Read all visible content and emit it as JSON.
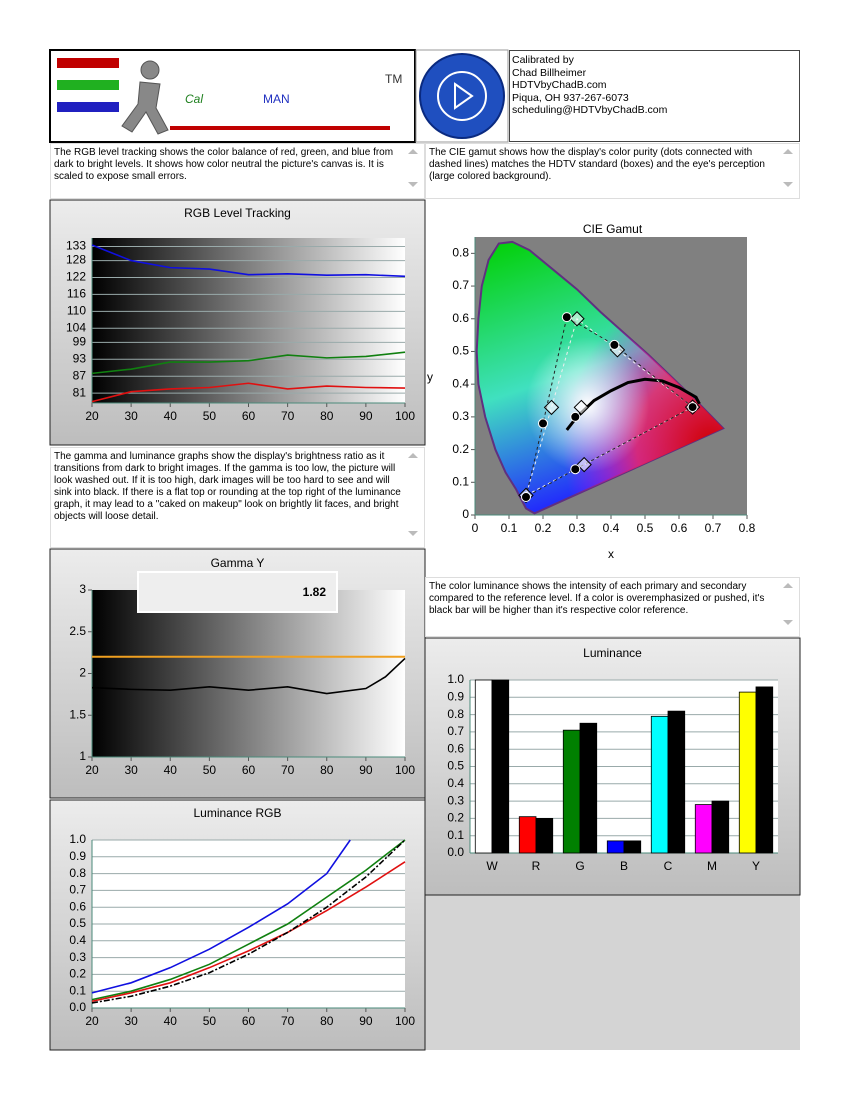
{
  "logo": {
    "cal": "Cal",
    "man": "MAN",
    "tm": "TM"
  },
  "calibrated_by": [
    "Calibrated by",
    "Chad Billheimer",
    "HDTVbyChadB.com",
    "Piqua, OH 937-267-6073",
    "scheduling@HDTVbyChadB.com"
  ],
  "descriptions": {
    "rgb_tracking": "The RGB level tracking shows the color balance of red, green, and blue from dark to bright levels. It shows how color neutral the picture's canvas is.  It is scaled to expose small errors.",
    "cie_gamut": "The CIE gamut shows how the display's color purity (dots connected with dashed lines) matches the HDTV standard (boxes) and the eye's perception (large colored background).",
    "gamma": "The gamma and luminance graphs show the display's brightness ratio as it transitions from dark to bright images. If the gamma is too low, the picture will look washed out. If it is too high, dark images will be too hard to see and will sink into black. If there is a flat top or rounding at the top right of the luminance graph, it may lead to a \"caked on makeup\" look on brightly lit faces, and bright objects will loose detail.",
    "color_luminance": "The color luminance shows the intensity of each primary and secondary compared to the reference level. If a color is overemphasized or pushed, it's black bar will be higher than it's respective color reference."
  },
  "chart_data": [
    {
      "type": "line",
      "title": "RGB Level Tracking",
      "x": [
        20,
        30,
        40,
        50,
        60,
        70,
        80,
        90,
        100
      ],
      "series": [
        {
          "color": "#1010e0",
          "values": [
            133.5,
            128,
            125.5,
            125,
            123,
            123.3,
            122.8,
            123,
            122.4
          ]
        },
        {
          "color": "#108010",
          "values": [
            88,
            89.5,
            92,
            92,
            92.5,
            94.5,
            93.5,
            94,
            95.5
          ]
        },
        {
          "color": "#e01010",
          "values": [
            78,
            81.5,
            82.5,
            83,
            84.5,
            82.5,
            83.5,
            83,
            82.8
          ]
        }
      ],
      "xlim": [
        20,
        100
      ],
      "xticks": [
        20,
        30,
        40,
        50,
        60,
        70,
        80,
        90,
        100
      ],
      "ylim": [
        77.5,
        136
      ],
      "yticks": [
        133,
        128,
        122,
        116,
        110,
        104,
        99,
        93,
        87,
        81
      ],
      "grid": true
    },
    {
      "type": "scatter",
      "title": "CIE Gamut",
      "x_label": "x",
      "y_label": "y",
      "series": [
        {
          "marker": "diamond",
          "color": "#ffffff",
          "x": [
            0.64,
            0.3,
            0.15,
            0.225,
            0.321,
            0.419,
            0.3127
          ],
          "values": [
            0.33,
            0.6,
            0.06,
            0.329,
            0.154,
            0.505,
            0.329
          ]
        },
        {
          "marker": "dot",
          "color": "#000000",
          "x": [
            0.64,
            0.27,
            0.15,
            0.2,
            0.295,
            0.41,
            0.295
          ],
          "values": [
            0.33,
            0.605,
            0.055,
            0.28,
            0.14,
            0.52,
            0.3
          ]
        }
      ],
      "xlim": [
        0,
        0.8
      ],
      "xticks": [
        {
          "value": 0,
          "label": "0"
        },
        0.1,
        0.2,
        0.3,
        0.4,
        0.5,
        0.6,
        0.7,
        0.8
      ],
      "ylim": [
        0,
        0.85
      ],
      "yticks": [
        {
          "value": 0,
          "label": "0"
        },
        0.1,
        0.2,
        0.3,
        0.4,
        0.5,
        0.6,
        0.7,
        0.8
      ]
    },
    {
      "type": "line",
      "title": "Gamma Y",
      "current_value": 1.82,
      "target": 2.2,
      "target_color": "#f0a020",
      "x": [
        20,
        30,
        40,
        50,
        60,
        70,
        80,
        90,
        95,
        100
      ],
      "series": [
        {
          "color": "#000000",
          "values": [
            1.83,
            1.81,
            1.8,
            1.84,
            1.8,
            1.84,
            1.76,
            1.82,
            1.96,
            2.18
          ]
        }
      ],
      "xlim": [
        20,
        100
      ],
      "xticks": [
        20,
        30,
        40,
        50,
        60,
        70,
        80,
        90,
        100
      ],
      "ylim": [
        1,
        3
      ],
      "yticks": [
        1,
        1.5,
        2,
        2.5,
        3
      ],
      "grid": false
    },
    {
      "type": "line",
      "title": "Luminance RGB",
      "x": [
        20,
        30,
        40,
        50,
        60,
        70,
        80,
        90,
        100
      ],
      "series": [
        {
          "color": "#1010e0",
          "x": [
            20,
            30,
            40,
            50,
            60,
            70,
            80,
            86
          ],
          "values": [
            0.09,
            0.15,
            0.24,
            0.35,
            0.48,
            0.62,
            0.8,
            1.0
          ]
        },
        {
          "color": "#108010",
          "values": [
            0.05,
            0.1,
            0.17,
            0.26,
            0.38,
            0.5,
            0.66,
            0.82,
            1.0
          ]
        },
        {
          "color": "#e01010",
          "values": [
            0.04,
            0.09,
            0.15,
            0.24,
            0.34,
            0.45,
            0.58,
            0.72,
            0.87
          ]
        },
        {
          "color": "#000000",
          "dash": "6 2 2 2",
          "values": [
            0.03,
            0.07,
            0.13,
            0.21,
            0.32,
            0.45,
            0.6,
            0.78,
            1.0
          ]
        }
      ],
      "xlim": [
        20,
        100
      ],
      "xticks": [
        20,
        30,
        40,
        50,
        60,
        70,
        80,
        90,
        100
      ],
      "ylim": [
        0,
        1
      ],
      "yticks": [
        {
          "value": 0,
          "label": "0.0"
        },
        0.1,
        0.2,
        0.3,
        0.4,
        0.5,
        0.6,
        0.7,
        0.8,
        0.9,
        {
          "value": 1,
          "label": "1.0"
        }
      ],
      "grid": true
    },
    {
      "type": "bar",
      "title": "Luminance",
      "categories": [
        "W",
        "R",
        "G",
        "B",
        "C",
        "M",
        "Y"
      ],
      "series": [
        {
          "colors": [
            "#ffffff",
            "#ff0000",
            "#008000",
            "#0000ff",
            "#00ffff",
            "#ff00ff",
            "#ffff00"
          ],
          "values": [
            1.0,
            0.21,
            0.71,
            0.07,
            0.79,
            0.28,
            0.93
          ]
        },
        {
          "color": "#000000",
          "values": [
            1.0,
            0.2,
            0.75,
            0.07,
            0.82,
            0.3,
            0.96
          ]
        }
      ],
      "ylim": [
        0,
        1
      ],
      "yticks": [
        {
          "value": 0,
          "label": "0.0"
        },
        0.1,
        0.2,
        0.3,
        0.4,
        0.5,
        0.6,
        0.7,
        0.8,
        0.9,
        {
          "value": 1,
          "label": "1.0"
        }
      ],
      "grid": true
    }
  ]
}
